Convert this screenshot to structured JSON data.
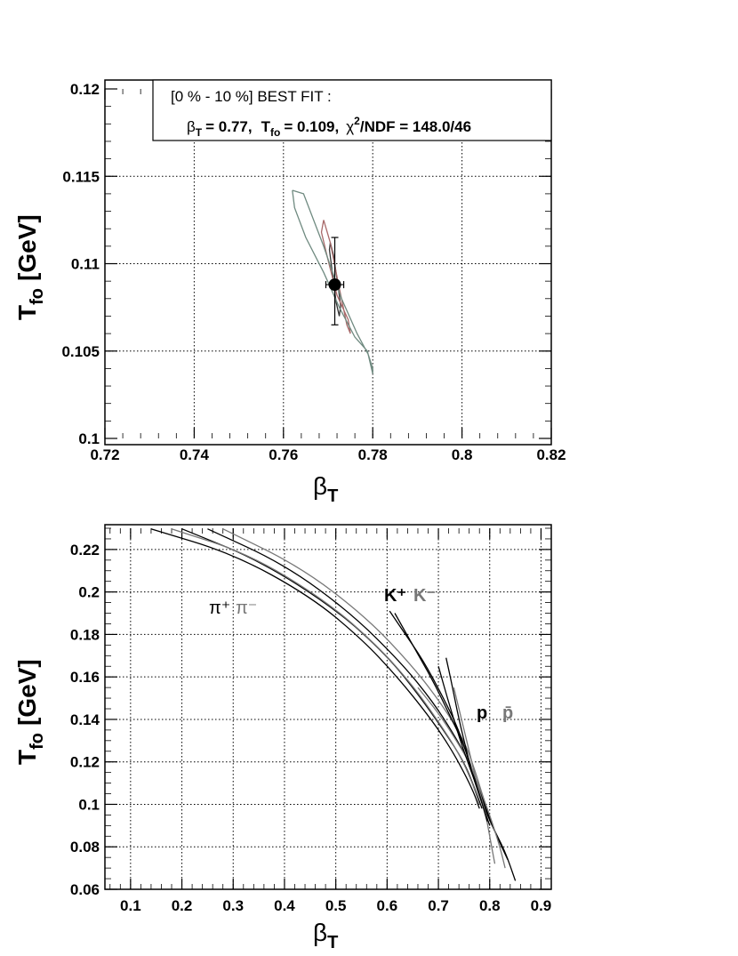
{
  "colors": {
    "black": "#000000",
    "gray": "#777777",
    "contour_green": "#6f8a80",
    "contour_red": "#a86a6a"
  },
  "chart_data": [
    {
      "type": "scatter",
      "xlabel": "β_T",
      "ylabel": "T_fo [GeV]",
      "xlim": [
        0.72,
        0.82
      ],
      "ylim": [
        0.1,
        0.12
      ],
      "xticks": [
        "0.72",
        "0.74",
        "0.76",
        "0.78",
        "0.8",
        "0.82"
      ],
      "yticks": [
        "0.1",
        "0.105",
        "0.11",
        "0.115",
        "0.12"
      ],
      "grid": true,
      "legend": {
        "line1": "[0 % - 10 %] BEST FIT :",
        "beta_label": "β",
        "beta_sub": "T",
        "beta_value": "= 0.77,",
        "t_label": "T",
        "t_sub": "fo",
        "t_value": "= 0.109,",
        "chi_label": "χ",
        "chi_sup": "2",
        "chi_value": "/NDF = 148.0/46"
      },
      "best_fit": {
        "x": 0.7715,
        "y": 0.1088,
        "xerr": 0.002,
        "yerr_up": 0.0027,
        "yerr_down": 0.0023
      },
      "contours": [
        {
          "level": "inner",
          "color": "#333333",
          "points": [
            [
              0.7705,
              0.1112
            ],
            [
              0.7712,
              0.1105
            ],
            [
              0.7722,
              0.1088
            ],
            [
              0.7728,
              0.1076
            ],
            [
              0.7725,
              0.107
            ],
            [
              0.7718,
              0.1078
            ],
            [
              0.7708,
              0.1098
            ],
            [
              0.7703,
              0.1108
            ],
            [
              0.7705,
              0.1112
            ]
          ]
        },
        {
          "level": "middle",
          "color": "#a86a6a",
          "points": [
            [
              0.769,
              0.1125
            ],
            [
              0.7705,
              0.1112
            ],
            [
              0.7722,
              0.109
            ],
            [
              0.7742,
              0.1065
            ],
            [
              0.775,
              0.106
            ],
            [
              0.7745,
              0.1068
            ],
            [
              0.772,
              0.1082
            ],
            [
              0.77,
              0.1102
            ],
            [
              0.7685,
              0.1118
            ],
            [
              0.769,
              0.1125
            ]
          ]
        },
        {
          "level": "outer",
          "color": "#6f8a80",
          "points": [
            [
              0.762,
              0.1142
            ],
            [
              0.7645,
              0.114
            ],
            [
              0.769,
              0.111
            ],
            [
              0.773,
              0.108
            ],
            [
              0.7765,
              0.106
            ],
            [
              0.779,
              0.1048
            ],
            [
              0.78,
              0.104
            ],
            [
              0.78,
              0.1037
            ],
            [
              0.7788,
              0.105
            ],
            [
              0.776,
              0.1058
            ],
            [
              0.7725,
              0.1075
            ],
            [
              0.769,
              0.1095
            ],
            [
              0.765,
              0.1115
            ],
            [
              0.7625,
              0.1132
            ],
            [
              0.762,
              0.1142
            ]
          ]
        }
      ]
    },
    {
      "type": "line",
      "xlabel": "β_T",
      "ylabel": "T_fo [GeV]",
      "xlim": [
        0.05,
        0.92
      ],
      "ylim": [
        0.06,
        0.23
      ],
      "xticks": [
        "0.1",
        "0.2",
        "0.3",
        "0.4",
        "0.5",
        "0.6",
        "0.7",
        "0.8",
        "0.9"
      ],
      "yticks": [
        "0.06",
        "0.08",
        "0.1",
        "0.12",
        "0.14",
        "0.16",
        "0.18",
        "0.2",
        "0.22"
      ],
      "grid": true,
      "annotations": {
        "pion_plus": "π⁺",
        "pion_minus": "π⁻",
        "kaon_plus": "K⁺",
        "kaon_minus": "K⁻",
        "proton": "p",
        "antiproton": "p̄"
      },
      "series": [
        {
          "color": "#000000",
          "points": [
            [
              0.14,
              0.2297
            ],
            [
              0.3,
              0.218
            ],
            [
              0.45,
              0.198
            ],
            [
              0.55,
              0.178
            ],
            [
              0.62,
              0.16
            ],
            [
              0.68,
              0.142
            ],
            [
              0.72,
              0.128
            ],
            [
              0.75,
              0.115
            ],
            [
              0.77,
              0.105
            ],
            [
              0.78,
              0.098
            ]
          ]
        },
        {
          "color": "#000000",
          "points": [
            [
              0.2,
              0.2297
            ],
            [
              0.35,
              0.215
            ],
            [
              0.5,
              0.192
            ],
            [
              0.6,
              0.17
            ],
            [
              0.66,
              0.152
            ],
            [
              0.71,
              0.135
            ],
            [
              0.75,
              0.12
            ],
            [
              0.77,
              0.108
            ],
            [
              0.785,
              0.098
            ]
          ]
        },
        {
          "color": "#000000",
          "points": [
            [
              0.25,
              0.2297
            ],
            [
              0.4,
              0.213
            ],
            [
              0.53,
              0.19
            ],
            [
              0.63,
              0.166
            ],
            [
              0.69,
              0.148
            ],
            [
              0.73,
              0.133
            ],
            [
              0.76,
              0.12
            ],
            [
              0.78,
              0.107
            ],
            [
              0.79,
              0.099
            ]
          ]
        },
        {
          "color": "#777777",
          "points": [
            [
              0.18,
              0.2297
            ],
            [
              0.33,
              0.218
            ],
            [
              0.48,
              0.196
            ],
            [
              0.58,
              0.175
            ],
            [
              0.65,
              0.156
            ],
            [
              0.7,
              0.139
            ],
            [
              0.74,
              0.124
            ],
            [
              0.765,
              0.111
            ],
            [
              0.78,
              0.1
            ]
          ]
        },
        {
          "color": "#777777",
          "points": [
            [
              0.28,
              0.2297
            ],
            [
              0.43,
              0.212
            ],
            [
              0.56,
              0.188
            ],
            [
              0.65,
              0.165
            ],
            [
              0.71,
              0.146
            ],
            [
              0.75,
              0.13
            ],
            [
              0.77,
              0.117
            ],
            [
              0.785,
              0.105
            ],
            [
              0.8,
              0.094
            ]
          ]
        },
        {
          "color": "#000000",
          "points": [
            [
              0.605,
              0.191
            ],
            [
              0.63,
              0.182
            ],
            [
              0.67,
              0.168
            ],
            [
              0.71,
              0.15
            ],
            [
              0.74,
              0.135
            ],
            [
              0.76,
              0.12
            ],
            [
              0.78,
              0.105
            ],
            [
              0.8,
              0.092
            ],
            [
              0.83,
              0.078
            ],
            [
              0.85,
              0.064
            ]
          ]
        },
        {
          "color": "#000000",
          "points": [
            [
              0.615,
              0.19
            ],
            [
              0.65,
              0.175
            ],
            [
              0.69,
              0.158
            ],
            [
              0.72,
              0.143
            ],
            [
              0.75,
              0.128
            ],
            [
              0.77,
              0.113
            ],
            [
              0.79,
              0.1
            ],
            [
              0.81,
              0.087
            ],
            [
              0.835,
              0.074
            ]
          ]
        },
        {
          "color": "#777777",
          "points": [
            [
              0.66,
              0.155
            ],
            [
              0.7,
              0.143
            ],
            [
              0.73,
              0.132
            ],
            [
              0.76,
              0.12
            ],
            [
              0.78,
              0.108
            ],
            [
              0.8,
              0.095
            ],
            [
              0.82,
              0.08
            ],
            [
              0.83,
              0.07
            ]
          ]
        },
        {
          "color": "#000000",
          "points": [
            [
              0.715,
              0.169
            ],
            [
              0.725,
              0.158
            ],
            [
              0.74,
              0.14
            ],
            [
              0.755,
              0.125
            ],
            [
              0.765,
              0.115
            ],
            [
              0.78,
              0.104
            ],
            [
              0.79,
              0.097
            ],
            [
              0.8,
              0.09
            ]
          ]
        },
        {
          "color": "#777777",
          "points": [
            [
              0.73,
              0.155
            ],
            [
              0.745,
              0.14
            ],
            [
              0.76,
              0.125
            ],
            [
              0.775,
              0.11
            ],
            [
              0.79,
              0.098
            ],
            [
              0.8,
              0.085
            ],
            [
              0.81,
              0.072
            ]
          ]
        },
        {
          "color": "#000000",
          "points": [
            [
              0.7,
              0.165
            ],
            [
              0.72,
              0.148
            ],
            [
              0.74,
              0.132
            ],
            [
              0.76,
              0.118
            ],
            [
              0.78,
              0.105
            ],
            [
              0.795,
              0.092
            ]
          ]
        }
      ]
    }
  ]
}
